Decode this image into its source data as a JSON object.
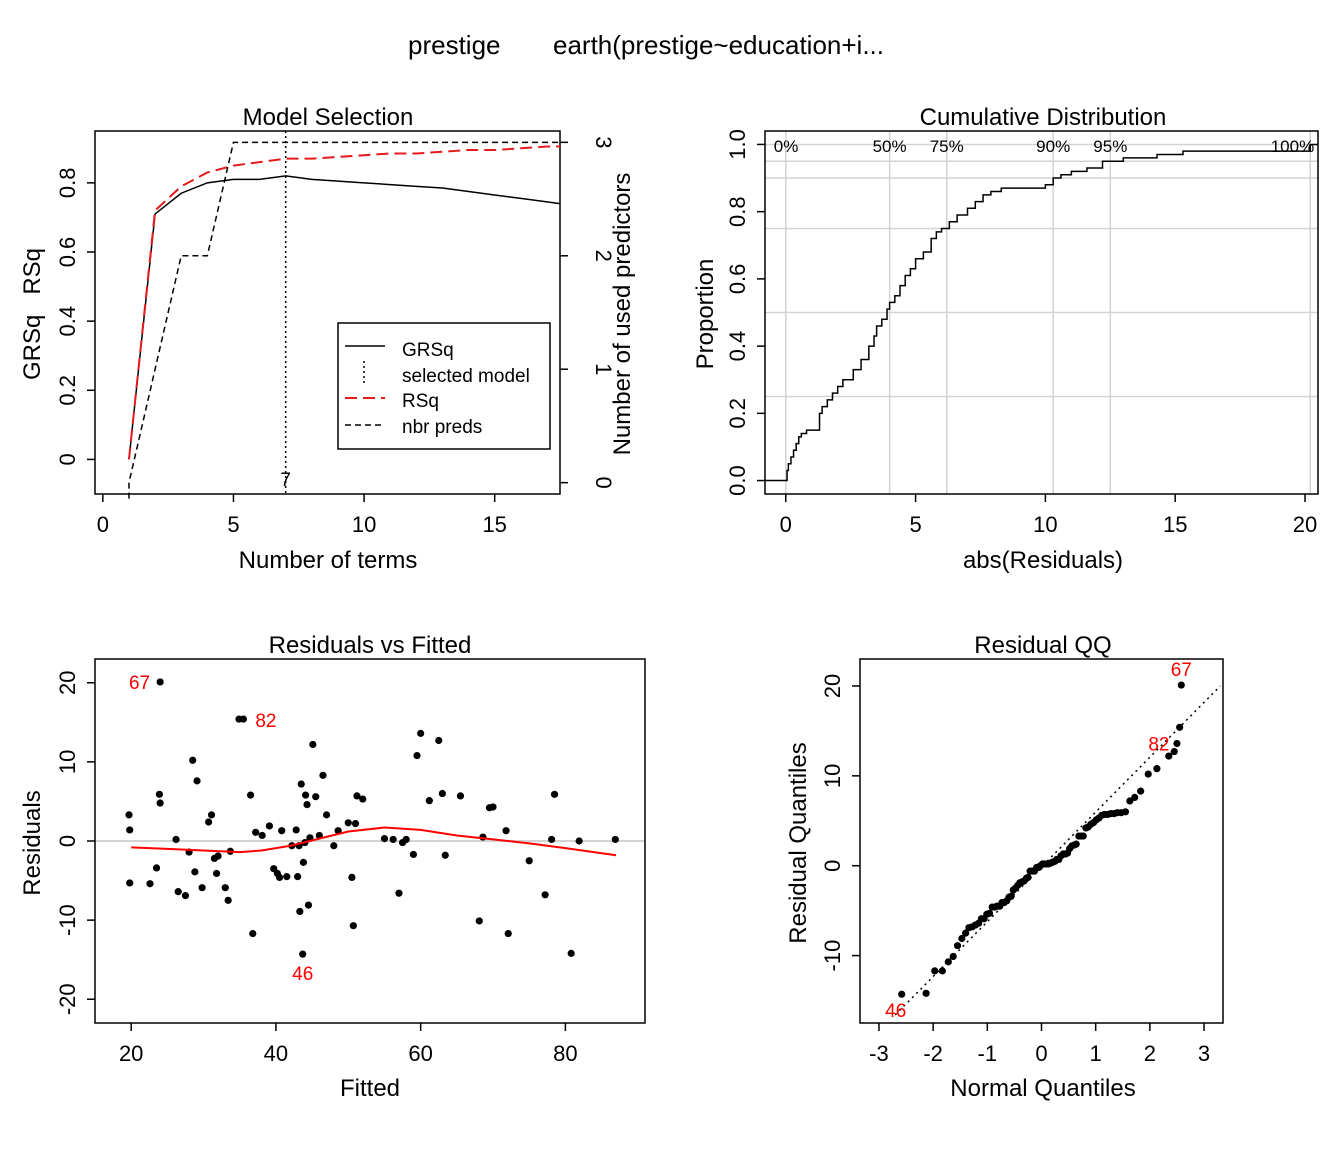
{
  "figure": {
    "title_left": "prestige",
    "title_right": "earth(prestige~education+i..."
  },
  "chart_data": [
    {
      "type": "line",
      "title": "Model Selection",
      "xlabel": "Number of terms",
      "ylabel": "GRSq   RSq",
      "y2label": "Number of used predictors",
      "xlim": [
        -0.3,
        17.5
      ],
      "ylim": [
        -0.1,
        0.95
      ],
      "y2lim": [
        -0.1,
        3.1
      ],
      "xticks": [
        0,
        5,
        10,
        15
      ],
      "yticks": [
        0,
        0.2,
        0.4,
        0.6,
        0.8
      ],
      "ytick_labels": [
        "0",
        "0.2",
        "0.4",
        "0.6",
        "0.8"
      ],
      "y2ticks": [
        0,
        1,
        2,
        3
      ],
      "selected_terms": 7,
      "selected_label": "7",
      "legend": {
        "position": "lower-right",
        "entries": [
          "GRSq",
          "selected model",
          "RSq",
          "nbr preds"
        ]
      },
      "series": [
        {
          "name": "GRSq",
          "color": "#000000",
          "style": "solid",
          "x": [
            1,
            2,
            3,
            4,
            5,
            6,
            7,
            8,
            9,
            10,
            11,
            12,
            13,
            14,
            15,
            16,
            17,
            17.5
          ],
          "values": [
            0,
            0.71,
            0.77,
            0.8,
            0.81,
            0.81,
            0.82,
            0.81,
            0.805,
            0.8,
            0.795,
            0.79,
            0.785,
            0.775,
            0.765,
            0.755,
            0.745,
            0.74
          ]
        },
        {
          "name": "RSq",
          "color": "#e41a1c",
          "style": "dashed",
          "x": [
            1,
            2,
            3,
            4,
            5,
            6,
            7,
            8,
            9,
            10,
            11,
            12,
            13,
            14,
            15,
            16,
            17,
            17.5
          ],
          "values": [
            0,
            0.72,
            0.79,
            0.83,
            0.85,
            0.86,
            0.87,
            0.87,
            0.875,
            0.88,
            0.885,
            0.885,
            0.89,
            0.895,
            0.895,
            0.9,
            0.905,
            0.905
          ]
        },
        {
          "name": "nbr preds",
          "color": "#000000",
          "style": "dashed",
          "axis": "right",
          "x": [
            1,
            2,
            3,
            4,
            5,
            6,
            7,
            8,
            9,
            10,
            11,
            12,
            13,
            14,
            15,
            16,
            17,
            17.5
          ],
          "values": [
            0,
            1,
            2,
            2,
            3,
            3,
            3,
            3,
            3,
            3,
            3,
            3,
            3,
            3,
            3,
            3,
            3,
            3
          ]
        }
      ]
    },
    {
      "type": "line",
      "title": "Cumulative Distribution",
      "xlabel": "abs(Residuals)",
      "ylabel": "Proportion",
      "xlim": [
        -0.8,
        20.5
      ],
      "ylim": [
        -0.04,
        1.04
      ],
      "xticks": [
        0,
        5,
        10,
        15,
        20
      ],
      "yticks": [
        0,
        0.2,
        0.4,
        0.6,
        0.8,
        1
      ],
      "ytick_labels": [
        "0.0",
        "0.2",
        "0.4",
        "0.6",
        "0.8",
        "1.0"
      ],
      "grid": true,
      "hlines": [
        0.25,
        0.5,
        0.75,
        0.9,
        0.95,
        1.0
      ],
      "quantile_labels": [
        {
          "label": "0%",
          "x": 0
        },
        {
          "label": "50%",
          "x": 4.0
        },
        {
          "label": "75%",
          "x": 6.2
        },
        {
          "label": "90%",
          "x": 10.3
        },
        {
          "label": "95%",
          "x": 12.5
        },
        {
          "label": "100%",
          "x": 20.2
        }
      ],
      "series": [
        {
          "name": "",
          "color": "#000000",
          "step": true,
          "x": [
            0,
            0.05,
            0.1,
            0.2,
            0.3,
            0.4,
            0.5,
            0.6,
            0.8,
            1.0,
            1.3,
            1.4,
            1.6,
            1.8,
            2.0,
            2.2,
            2.4,
            2.6,
            2.9,
            3.2,
            3.4,
            3.5,
            3.7,
            3.9,
            4.0,
            4.2,
            4.4,
            4.6,
            4.8,
            5.0,
            5.3,
            5.6,
            5.8,
            6.0,
            6.3,
            6.6,
            7.0,
            7.3,
            7.6,
            7.9,
            8.3,
            9.0,
            10.0,
            10.3,
            10.6,
            11.0,
            11.6,
            12.2,
            13.0,
            14.3,
            15.3,
            20.2,
            20.5
          ],
          "values": [
            0.0,
            0.03,
            0.05,
            0.07,
            0.09,
            0.11,
            0.13,
            0.14,
            0.15,
            0.15,
            0.2,
            0.22,
            0.24,
            0.26,
            0.28,
            0.3,
            0.3,
            0.33,
            0.36,
            0.4,
            0.43,
            0.46,
            0.48,
            0.51,
            0.53,
            0.55,
            0.58,
            0.61,
            0.63,
            0.66,
            0.68,
            0.72,
            0.74,
            0.75,
            0.77,
            0.79,
            0.81,
            0.83,
            0.85,
            0.86,
            0.87,
            0.87,
            0.88,
            0.9,
            0.91,
            0.92,
            0.93,
            0.95,
            0.96,
            0.97,
            0.98,
            1.0,
            1.0
          ]
        }
      ]
    },
    {
      "type": "scatter",
      "title": "Residuals vs Fitted",
      "xlabel": "Fitted",
      "ylabel": "Residuals",
      "xlim": [
        15,
        91
      ],
      "ylim": [
        -23,
        23
      ],
      "xticks": [
        20,
        40,
        60,
        80
      ],
      "yticks": [
        -20,
        -10,
        0,
        10,
        20
      ],
      "hline": 0,
      "smooth": {
        "color": "#ff0000",
        "x": [
          20,
          25,
          30,
          35,
          38,
          42,
          46,
          50,
          55,
          60,
          65,
          70,
          75,
          80,
          87
        ],
        "y": [
          -0.8,
          -1.0,
          -1.2,
          -1.4,
          -1.2,
          -0.6,
          0.3,
          1.2,
          1.7,
          1.4,
          0.7,
          0.2,
          -0.3,
          -0.9,
          -1.8
        ]
      },
      "labels": [
        {
          "label": "67",
          "x": 24,
          "y": 20.1,
          "side": "left"
        },
        {
          "label": "82",
          "x": 35.5,
          "y": 15.4,
          "side": "right"
        },
        {
          "label": "46",
          "x": 43.7,
          "y": -14.3,
          "side": "below"
        }
      ],
      "x": [
        24,
        35.5,
        43.7,
        19.7,
        19.8,
        19.8,
        22.6,
        23.5,
        23.9,
        24.0,
        26.2,
        26.5,
        27.5,
        28.0,
        28.5,
        28.8,
        29.1,
        29.8,
        30.7,
        31.1,
        31.5,
        31.8,
        32.0,
        33.0,
        33.4,
        33.7,
        34.9,
        36.5,
        36.8,
        37.2,
        38.1,
        39.1,
        39.7,
        40.2,
        40.5,
        40.8,
        41.5,
        42.2,
        42.8,
        43.0,
        43.2,
        43.3,
        43.5,
        43.8,
        44.0,
        44.1,
        44.3,
        44.5,
        44.7,
        45.1,
        45.5,
        46.0,
        46.5,
        47.0,
        48.0,
        48.6,
        50.0,
        50.5,
        50.7,
        51.0,
        51.2,
        52.0,
        55.0,
        56.2,
        57.0,
        57.5,
        58.0,
        59.0,
        59.5,
        60.0,
        61.2,
        62.5,
        63.0,
        63.4,
        65.5,
        68.1,
        68.6,
        69.5,
        70.0,
        71.8,
        72.1,
        75.0,
        77.2,
        78.1,
        78.5,
        80.8,
        81.9,
        86.9
      ],
      "y": [
        20.1,
        15.4,
        -14.3,
        3.3,
        1.4,
        -5.3,
        -5.4,
        -3.4,
        5.9,
        4.8,
        0.2,
        -6.4,
        -6.9,
        -1.4,
        10.2,
        -3.9,
        7.6,
        -5.9,
        2.4,
        3.3,
        -2.2,
        -4.1,
        -1.9,
        -5.9,
        -7.5,
        -1.3,
        15.4,
        5.8,
        -11.7,
        1.1,
        0.7,
        1.9,
        -3.5,
        -4.1,
        -4.6,
        1.3,
        -4.5,
        -0.6,
        1.4,
        -4.5,
        -0.6,
        -8.9,
        7.2,
        -2.7,
        -0.2,
        5.8,
        4.6,
        -8.1,
        0.4,
        12.2,
        5.6,
        0.7,
        8.3,
        3.3,
        -0.6,
        1.3,
        2.3,
        -4.6,
        -10.7,
        2.2,
        5.7,
        5.3,
        0.3,
        0.2,
        -6.6,
        -0.2,
        0.2,
        -1.7,
        10.8,
        13.6,
        5.1,
        12.7,
        6.0,
        -1.8,
        5.7,
        -10.1,
        0.5,
        4.2,
        4.3,
        1.3,
        -11.7,
        -2.5,
        -6.8,
        0.2,
        5.9,
        -14.2,
        0.0,
        0.2
      ],
      "point_color": "#000000",
      "label_color": "#ff0000"
    },
    {
      "type": "scatter",
      "title": "Residual QQ",
      "xlabel": "Normal Quantiles",
      "ylabel": "Residual Quantiles",
      "xlim": [
        -3.35,
        3.35
      ],
      "ylim": [
        -17.5,
        23
      ],
      "xticks": [
        -3,
        -2,
        -1,
        0,
        1,
        2,
        3
      ],
      "yticks": [
        -10,
        0,
        10,
        20
      ],
      "reference_line": {
        "x": [
          -2.7,
          3.3
        ],
        "y": [
          -16.6,
          20.0
        ]
      },
      "labels": [
        {
          "label": "67",
          "x": 2.58,
          "y": 20.1,
          "side": "above"
        },
        {
          "label": "82",
          "x": 2.13,
          "y": 15.4,
          "side": "below"
        },
        {
          "label": "46",
          "x": -2.58,
          "y": -14.3,
          "side": "below"
        }
      ],
      "points": [
        [
          -2.58,
          -14.3
        ],
        [
          -2.13,
          -14.2
        ],
        [
          -1.97,
          -11.7
        ],
        [
          -1.83,
          -11.7
        ],
        [
          -1.72,
          -10.7
        ],
        [
          -1.63,
          -10.1
        ],
        [
          -1.55,
          -8.9
        ],
        [
          -1.47,
          -8.1
        ],
        [
          -1.4,
          -7.5
        ],
        [
          -1.34,
          -6.9
        ],
        [
          -1.28,
          -6.8
        ],
        [
          -1.22,
          -6.6
        ],
        [
          -1.16,
          -6.4
        ],
        [
          -1.11,
          -5.9
        ],
        [
          -1.06,
          -5.9
        ],
        [
          -1.01,
          -5.4
        ],
        [
          -0.96,
          -5.3
        ],
        [
          -0.91,
          -4.6
        ],
        [
          -0.86,
          -4.6
        ],
        [
          -0.82,
          -4.5
        ],
        [
          -0.77,
          -4.5
        ],
        [
          -0.73,
          -4.1
        ],
        [
          -0.69,
          -4.1
        ],
        [
          -0.64,
          -3.9
        ],
        [
          -0.6,
          -3.5
        ],
        [
          -0.56,
          -3.4
        ],
        [
          -0.52,
          -2.7
        ],
        [
          -0.48,
          -2.5
        ],
        [
          -0.44,
          -2.2
        ],
        [
          -0.4,
          -1.9
        ],
        [
          -0.36,
          -1.8
        ],
        [
          -0.32,
          -1.7
        ],
        [
          -0.28,
          -1.4
        ],
        [
          -0.25,
          -1.3
        ],
        [
          -0.21,
          -0.6
        ],
        [
          -0.17,
          -0.6
        ],
        [
          -0.13,
          -0.6
        ],
        [
          -0.09,
          -0.2
        ],
        [
          -0.05,
          -0.2
        ],
        [
          -0.02,
          0.0
        ],
        [
          0.02,
          0.2
        ],
        [
          0.05,
          0.2
        ],
        [
          0.09,
          0.2
        ],
        [
          0.13,
          0.2
        ],
        [
          0.17,
          0.3
        ],
        [
          0.21,
          0.4
        ],
        [
          0.25,
          0.5
        ],
        [
          0.28,
          0.7
        ],
        [
          0.32,
          0.7
        ],
        [
          0.36,
          1.1
        ],
        [
          0.4,
          1.3
        ],
        [
          0.44,
          1.3
        ],
        [
          0.48,
          1.4
        ],
        [
          0.52,
          1.9
        ],
        [
          0.56,
          2.2
        ],
        [
          0.6,
          2.3
        ],
        [
          0.64,
          2.4
        ],
        [
          0.69,
          3.3
        ],
        [
          0.73,
          3.3
        ],
        [
          0.77,
          3.3
        ],
        [
          0.82,
          4.2
        ],
        [
          0.86,
          4.3
        ],
        [
          0.91,
          4.6
        ],
        [
          0.96,
          4.8
        ],
        [
          1.01,
          5.1
        ],
        [
          1.06,
          5.3
        ],
        [
          1.11,
          5.6
        ],
        [
          1.16,
          5.7
        ],
        [
          1.22,
          5.7
        ],
        [
          1.28,
          5.8
        ],
        [
          1.34,
          5.8
        ],
        [
          1.4,
          5.9
        ],
        [
          1.47,
          5.9
        ],
        [
          1.55,
          6.0
        ],
        [
          1.63,
          7.2
        ],
        [
          1.72,
          7.6
        ],
        [
          1.83,
          8.3
        ],
        [
          1.97,
          10.2
        ],
        [
          2.13,
          10.8
        ],
        [
          2.35,
          12.2
        ],
        [
          2.45,
          12.7
        ],
        [
          2.5,
          13.6
        ],
        [
          2.55,
          15.4
        ],
        [
          2.58,
          20.1
        ]
      ],
      "point_color": "#000000",
      "label_color": "#ff0000"
    }
  ]
}
